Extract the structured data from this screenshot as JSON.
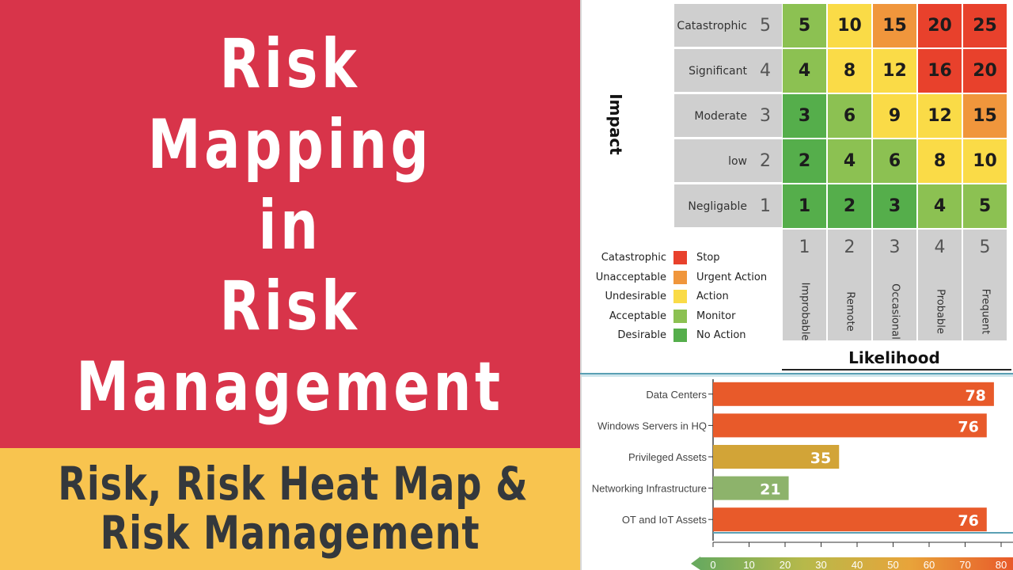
{
  "poster": {
    "title_lines": [
      "Risk",
      "Mapping",
      "in",
      "Risk",
      "Management"
    ],
    "subtitle_lines": [
      "Risk, Risk Heat Map &",
      "Risk Management"
    ]
  },
  "heatmap": {
    "axis_y": "Impact",
    "axis_x": "Likelihood",
    "rows": [
      {
        "label": "Catastrophic",
        "level": "5",
        "cells": [
          "5",
          "10",
          "15",
          "20",
          "25"
        ]
      },
      {
        "label": "Significant",
        "level": "4",
        "cells": [
          "4",
          "8",
          "12",
          "16",
          "20"
        ]
      },
      {
        "label": "Moderate",
        "level": "3",
        "cells": [
          "3",
          "6",
          "9",
          "12",
          "15"
        ]
      },
      {
        "label": "low",
        "level": "2",
        "cells": [
          "2",
          "4",
          "6",
          "8",
          "10"
        ]
      },
      {
        "label": "Negligable",
        "level": "1",
        "cells": [
          "1",
          "2",
          "3",
          "4",
          "5"
        ]
      }
    ],
    "columns": [
      {
        "level": "1",
        "label": "Improbable"
      },
      {
        "level": "2",
        "label": "Remote"
      },
      {
        "level": "3",
        "label": "Occasional"
      },
      {
        "level": "4",
        "label": "Probable"
      },
      {
        "level": "5",
        "label": "Frequent"
      }
    ],
    "cell_colors": [
      [
        "#8cc152",
        "#fadb47",
        "#f0963c",
        "#e8412c",
        "#e8412c"
      ],
      [
        "#8cc152",
        "#fadb47",
        "#fadb47",
        "#e8412c",
        "#e8412c"
      ],
      [
        "#55ae4b",
        "#8cc152",
        "#fadb47",
        "#fadb47",
        "#f0963c"
      ],
      [
        "#55ae4b",
        "#8cc152",
        "#8cc152",
        "#fadb47",
        "#fadb47"
      ],
      [
        "#55ae4b",
        "#55ae4b",
        "#55ae4b",
        "#8cc152",
        "#8cc152"
      ]
    ],
    "legend": [
      {
        "label": "Catastrophic",
        "action": "Stop",
        "color": "#e8412c"
      },
      {
        "label": "Unacceptable",
        "action": "Urgent Action",
        "color": "#f0963c"
      },
      {
        "label": "Undesirable",
        "action": "Action",
        "color": "#fadb47"
      },
      {
        "label": "Acceptable",
        "action": "Monitor",
        "color": "#8cc152"
      },
      {
        "label": "Desirable",
        "action": "No Action",
        "color": "#55ae4b"
      }
    ]
  },
  "chart_data": {
    "type": "bar",
    "orientation": "horizontal",
    "categories": [
      "Data Centers",
      "Windows Servers in HQ",
      "Privileged Assets",
      "Networking Infrastructure",
      "OT and IoT Assets"
    ],
    "values": [
      78,
      76,
      35,
      21,
      76
    ],
    "bar_colors": [
      "#e85a2a",
      "#e85a2a",
      "#d2a437",
      "#8db36b",
      "#e85a2a"
    ],
    "xlim": [
      0,
      80
    ],
    "xticks": [
      "0",
      "10",
      "20",
      "30",
      "40",
      "50",
      "60",
      "70",
      "80"
    ],
    "scale_gradient": [
      "#6aaa5e",
      "#b7b94a",
      "#e8a43a",
      "#e85a2a"
    ]
  }
}
